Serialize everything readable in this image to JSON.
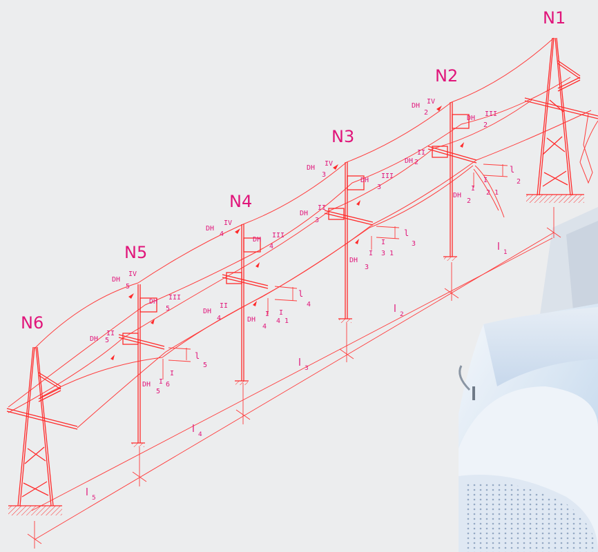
{
  "diagram": {
    "nodes": [
      {
        "id": "N1",
        "label": "N1"
      },
      {
        "id": "N2",
        "label": "N2"
      },
      {
        "id": "N3",
        "label": "N3"
      },
      {
        "id": "N4",
        "label": "N4"
      },
      {
        "id": "N5",
        "label": "N5"
      },
      {
        "id": "N6",
        "label": "N6"
      }
    ],
    "spans": [
      {
        "letter": "l",
        "sub": "1"
      },
      {
        "letter": "l",
        "sub": "2"
      },
      {
        "letter": "l",
        "sub": "3"
      },
      {
        "letter": "l",
        "sub": "4"
      },
      {
        "letter": "l",
        "sub": "5"
      }
    ],
    "clearance_marks": [
      {
        "letter": "l",
        "sub": "2"
      },
      {
        "letter": "l",
        "sub": "3"
      },
      {
        "letter": "l",
        "sub": "4"
      },
      {
        "letter": "l",
        "sub": "5"
      }
    ],
    "sag_annotations": [
      {
        "prefix": "DH",
        "sub": "2",
        "phase": "IV"
      },
      {
        "prefix": "DH",
        "sub": "2",
        "phase": "III"
      },
      {
        "prefix": "DH",
        "sub": "2",
        "phase": "II"
      },
      {
        "prefix": "DH",
        "sub": "2",
        "phase": "I"
      },
      {
        "prefix": "DH",
        "sub": "3",
        "phase": "IV"
      },
      {
        "prefix": "DH",
        "sub": "3",
        "phase": "III"
      },
      {
        "prefix": "DH",
        "sub": "3",
        "phase": "II"
      },
      {
        "prefix": "DH",
        "sub": "3",
        "phase": "I"
      },
      {
        "prefix": "DH",
        "sub": "4",
        "phase": "IV"
      },
      {
        "prefix": "DH",
        "sub": "4",
        "phase": "III"
      },
      {
        "prefix": "DH",
        "sub": "4",
        "phase": "II"
      },
      {
        "prefix": "DH",
        "sub": "4",
        "phase": "I"
      },
      {
        "prefix": "DH",
        "sub": "5",
        "phase": "IV"
      },
      {
        "prefix": "DH",
        "sub": "5",
        "phase": "III"
      },
      {
        "prefix": "DH",
        "sub": "5",
        "phase": "II"
      },
      {
        "prefix": "DH",
        "sub": "5",
        "phase": "I"
      }
    ],
    "phase_subs": [
      {
        "phase": "I",
        "sub": "2 1"
      },
      {
        "phase": "I",
        "sub": "3 1"
      },
      {
        "phase": "I",
        "sub": "4 1"
      },
      {
        "phase": "I",
        "sub": "6"
      }
    ],
    "colors": {
      "drawing": "#ff2a2a",
      "labels": "#e0157a",
      "background": "#ecedee"
    },
    "background_photo": "computer-monitor-illustration"
  }
}
